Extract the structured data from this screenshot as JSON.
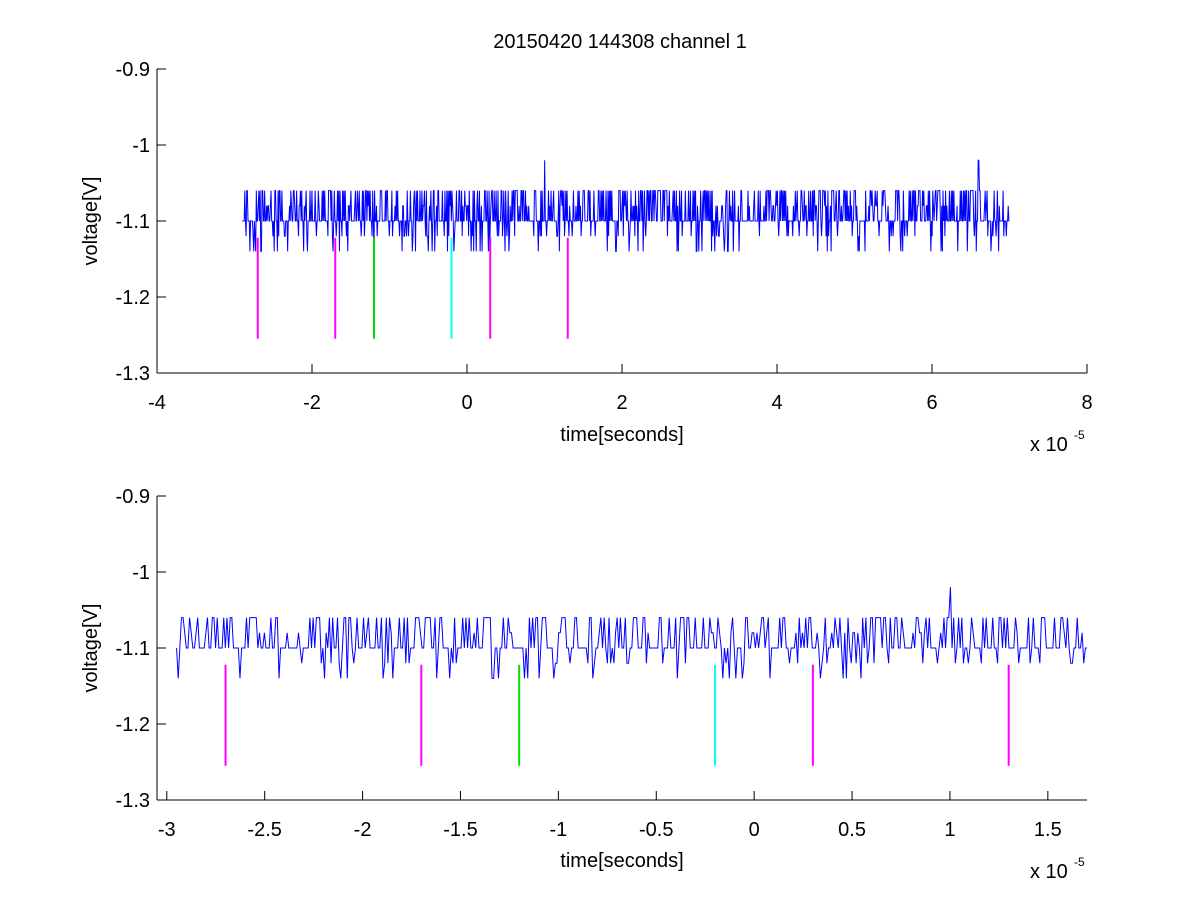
{
  "figure": {
    "title": "20150420 144308 channel 1"
  },
  "chart_data": [
    {
      "type": "line",
      "xlabel": "time[seconds]",
      "ylabel": "voltage[V]",
      "x_multiplier_label": "x 10",
      "x_multiplier_exponent": "-5",
      "xlim": [
        -4,
        8
      ],
      "ylim": [
        -1.3,
        -0.9
      ],
      "xticks": [
        -4,
        -2,
        0,
        2,
        4,
        6,
        8
      ],
      "xtick_labels": [
        "-4",
        "-2",
        "0",
        "2",
        "4",
        "6",
        "8"
      ],
      "yticks": [
        -1.3,
        -1.2,
        -1.1,
        -1.0,
        -0.9
      ],
      "ytick_labels": [
        "-1.3",
        "-1.2",
        "-1.1",
        "-1",
        "-0.9"
      ],
      "grid": false,
      "series": [
        {
          "color": "#0000ff",
          "style": "noisy-trace",
          "x_range": [
            -2.9,
            7.0
          ],
          "baseline": -1.1,
          "levels": [
            -1.14,
            -1.12,
            -1.1,
            -1.08,
            -1.06
          ],
          "spikes": [
            {
              "x": 1.0,
              "y": -1.02
            },
            {
              "x": 6.6,
              "y": -1.02
            }
          ]
        }
      ],
      "markers": [
        {
          "x": -2.7,
          "y_top": -1.122,
          "y_bottom": -1.255,
          "color": "#ff00ff"
        },
        {
          "x": -1.7,
          "y_top": -1.122,
          "y_bottom": -1.255,
          "color": "#ff00ff"
        },
        {
          "x": -1.2,
          "y_top": -1.122,
          "y_bottom": -1.255,
          "color": "#00dd00"
        },
        {
          "x": -0.2,
          "y_top": -1.122,
          "y_bottom": -1.255,
          "color": "#00ffff"
        },
        {
          "x": 0.3,
          "y_top": -1.122,
          "y_bottom": -1.255,
          "color": "#ff00ff"
        },
        {
          "x": 1.3,
          "y_top": -1.122,
          "y_bottom": -1.255,
          "color": "#ff00ff"
        }
      ]
    },
    {
      "type": "line",
      "xlabel": "time[seconds]",
      "ylabel": "voltage[V]",
      "x_multiplier_label": "x 10",
      "x_multiplier_exponent": "-5",
      "xlim": [
        -3.05,
        1.7
      ],
      "ylim": [
        -1.3,
        -0.9
      ],
      "xticks": [
        -3,
        -2.5,
        -2,
        -1.5,
        -1,
        -0.5,
        0,
        0.5,
        1,
        1.5
      ],
      "xtick_labels": [
        "-3",
        "-2.5",
        "-2",
        "-1.5",
        "-1",
        "-0.5",
        "0",
        "0.5",
        "1",
        "1.5"
      ],
      "yticks": [
        -1.3,
        -1.2,
        -1.1,
        -1.0,
        -0.9
      ],
      "ytick_labels": [
        "-1.3",
        "-1.2",
        "-1.1",
        "-1",
        "-0.9"
      ],
      "grid": false,
      "series": [
        {
          "color": "#0000ff",
          "style": "noisy-trace",
          "x_range": [
            -2.95,
            1.7
          ],
          "baseline": -1.1,
          "levels": [
            -1.14,
            -1.12,
            -1.1,
            -1.08,
            -1.06
          ],
          "spikes": [
            {
              "x": 1.0,
              "y": -1.02
            }
          ]
        }
      ],
      "markers": [
        {
          "x": -2.7,
          "y_top": -1.122,
          "y_bottom": -1.255,
          "color": "#ff00ff"
        },
        {
          "x": -1.7,
          "y_top": -1.122,
          "y_bottom": -1.255,
          "color": "#ff00ff"
        },
        {
          "x": -1.2,
          "y_top": -1.122,
          "y_bottom": -1.255,
          "color": "#00dd00"
        },
        {
          "x": -0.2,
          "y_top": -1.122,
          "y_bottom": -1.255,
          "color": "#00ffff"
        },
        {
          "x": 0.3,
          "y_top": -1.122,
          "y_bottom": -1.255,
          "color": "#ff00ff"
        },
        {
          "x": 1.3,
          "y_top": -1.122,
          "y_bottom": -1.255,
          "color": "#ff00ff"
        }
      ]
    }
  ]
}
